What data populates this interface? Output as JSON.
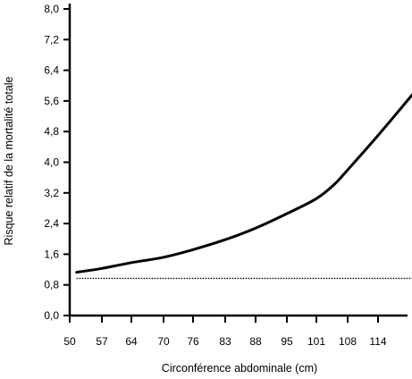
{
  "chart_data": {
    "type": "line",
    "title": "",
    "xlabel": "Circonférence abdominale (cm)",
    "ylabel": "Risque relatif de la mortalité totale",
    "x_ticks": [
      "50",
      "57",
      "64",
      "70",
      "76",
      "83",
      "88",
      "95",
      "101",
      "108",
      "114"
    ],
    "y_ticks": [
      "0,0",
      "0,8",
      "1,6",
      "2,4",
      "3,2",
      "4,0",
      "4,8",
      "5,6",
      "6,4",
      "7,2",
      "8,0"
    ],
    "xlim": [
      50,
      121
    ],
    "ylim": [
      0,
      8
    ],
    "grid": false,
    "legend": "none",
    "series": [
      {
        "style": "solid",
        "color": "#000000",
        "x": [
          51.5,
          57,
          64,
          70,
          76,
          83,
          88,
          95,
          101,
          105,
          108,
          114,
          121
        ],
        "y": [
          1.13,
          1.23,
          1.38,
          1.52,
          1.72,
          1.98,
          2.28,
          2.66,
          3.05,
          3.42,
          3.8,
          4.7,
          5.8
        ]
      },
      {
        "style": "dotted",
        "color": "#000000",
        "x": [
          51.5,
          121
        ],
        "y": [
          0.97,
          0.97
        ]
      }
    ]
  }
}
